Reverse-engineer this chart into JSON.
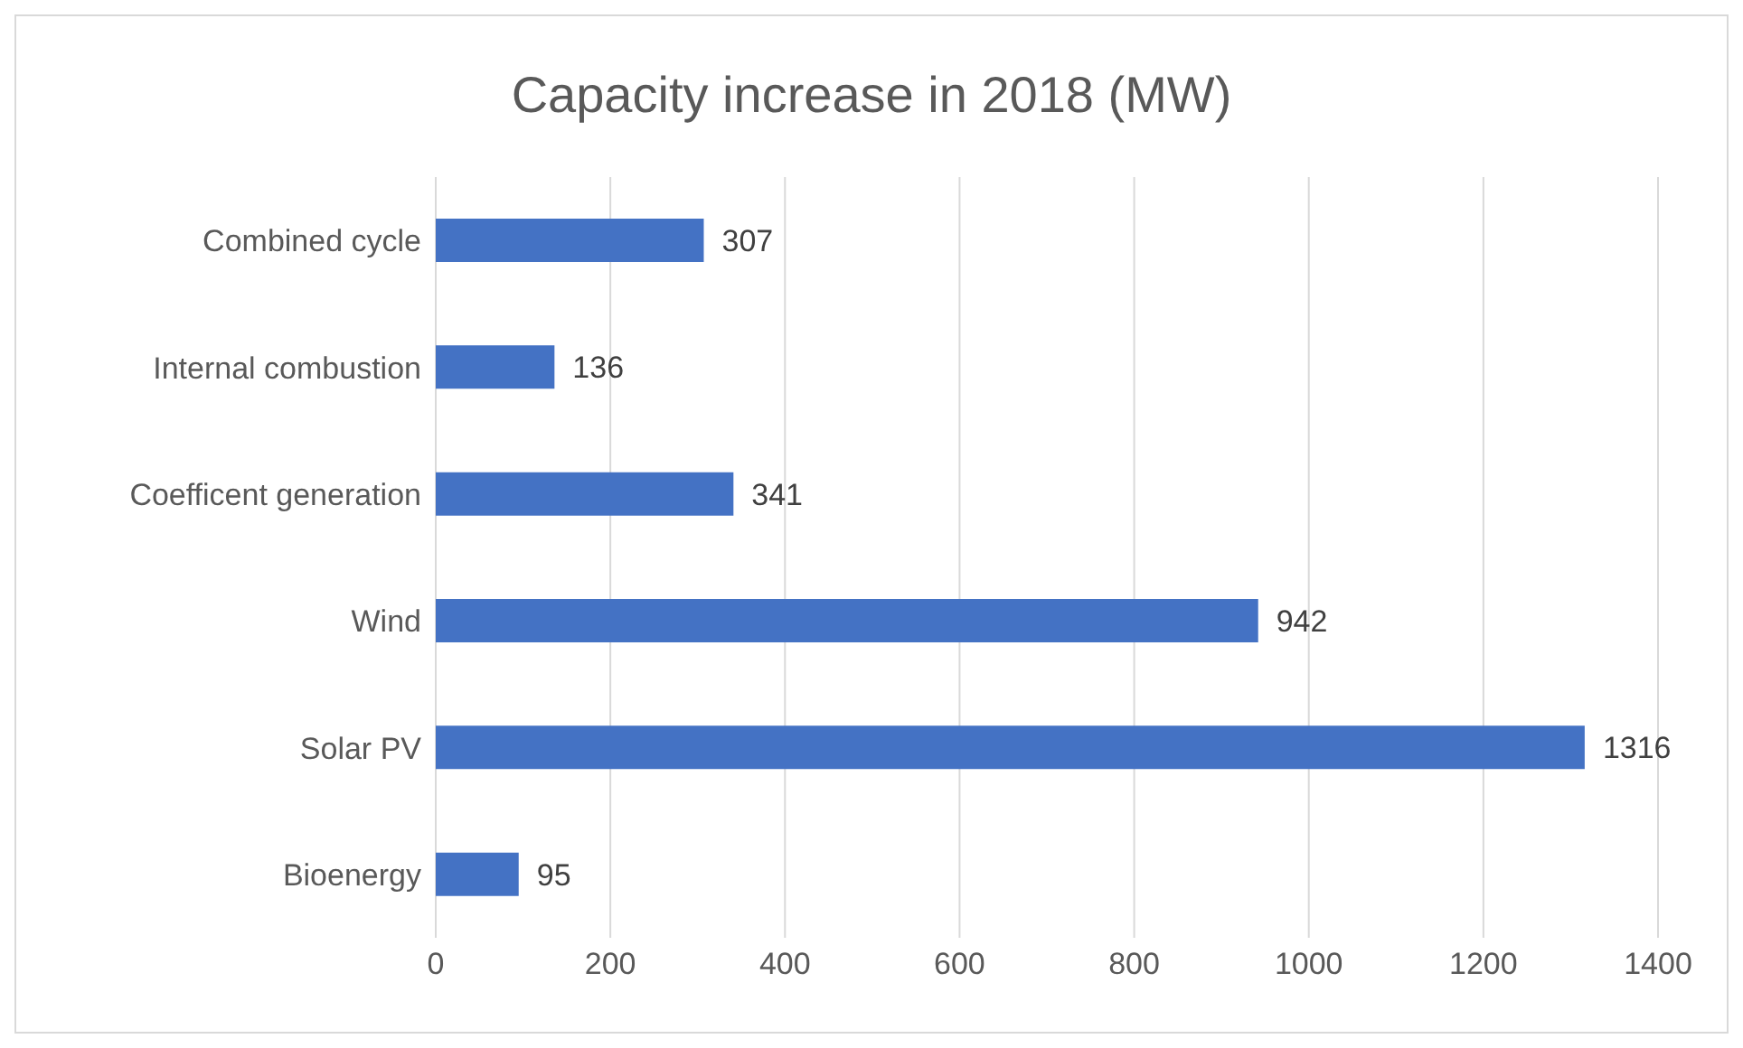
{
  "chart_data": {
    "type": "bar",
    "orientation": "horizontal",
    "title": "Capacity increase in 2018 (MW)",
    "categories": [
      "Combined cycle",
      "Internal combustion",
      "Coefficent generation",
      "Wind",
      "Solar PV",
      "Bioenergy"
    ],
    "values": [
      307,
      136,
      341,
      942,
      1316,
      95
    ],
    "color": "#4472c4",
    "xlim": [
      0,
      1400
    ],
    "xticks": [
      0,
      200,
      400,
      600,
      800,
      1000,
      1200,
      1400
    ],
    "grid": "x",
    "data_labels": true,
    "legend": false
  }
}
